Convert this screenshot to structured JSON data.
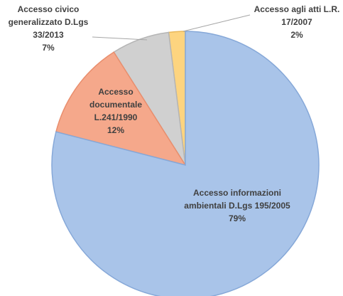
{
  "chart_data": {
    "type": "pie",
    "categories": [
      "Accesso informazioni ambientali D.Lgs 195/2005",
      "Accesso documentale L.241/1990",
      "Accesso civico generalizzato D.Lgs 33/2013",
      "Accesso agli atti L.R. 17/2007"
    ],
    "values": [
      79,
      12,
      7,
      2
    ],
    "value_labels": [
      "79%",
      "12%",
      "7%",
      "2%"
    ],
    "colors": [
      "#a9c4e9",
      "#f5a88b",
      "#d0d0d0",
      "#fdd47f"
    ]
  }
}
